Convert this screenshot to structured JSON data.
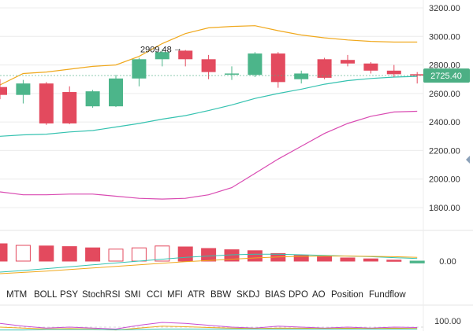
{
  "colors": {
    "up": "#4cb58a",
    "down": "#e34a5e",
    "boll_upper": "#f0a81c",
    "boll_mid": "#35c2b0",
    "boll_lower": "#d94bb2",
    "current_price_bg": "#4caf84",
    "grid": "#ececec",
    "axis_text": "#333333"
  },
  "price_axis": {
    "ticks": [
      "3200.00",
      "3000.00",
      "2800.00",
      "2600.00",
      "2400.00",
      "2200.00",
      "2000.00",
      "1800.00"
    ],
    "range": [
      1700,
      3250
    ]
  },
  "current_price": {
    "label": "2725.40",
    "value": 2725.4
  },
  "max_annotation": {
    "label": "2909.48",
    "value": 2909.48
  },
  "chart_data": {
    "type": "candlestick",
    "candles": [
      {
        "open": 2645,
        "close": 2590,
        "high": 2700,
        "low": 2560
      },
      {
        "open": 2590,
        "close": 2670,
        "high": 2695,
        "low": 2530
      },
      {
        "open": 2670,
        "close": 2390,
        "high": 2680,
        "low": 2380
      },
      {
        "open": 2610,
        "close": 2390,
        "high": 2650,
        "low": 2385
      },
      {
        "open": 2510,
        "close": 2615,
        "high": 2625,
        "low": 2500
      },
      {
        "open": 2510,
        "close": 2705,
        "high": 2730,
        "low": 2505
      },
      {
        "open": 2705,
        "close": 2840,
        "high": 2850,
        "low": 2650
      },
      {
        "open": 2840,
        "close": 2890,
        "high": 2909.48,
        "low": 2790
      },
      {
        "open": 2900,
        "close": 2840,
        "high": 2905,
        "low": 2790
      },
      {
        "open": 2840,
        "close": 2750,
        "high": 2870,
        "low": 2700
      },
      {
        "open": 2740,
        "close": 2740,
        "high": 2790,
        "low": 2695
      },
      {
        "open": 2730,
        "close": 2880,
        "high": 2890,
        "low": 2715
      },
      {
        "open": 2880,
        "close": 2680,
        "high": 2890,
        "low": 2640
      },
      {
        "open": 2700,
        "close": 2740,
        "high": 2760,
        "low": 2670
      },
      {
        "open": 2840,
        "close": 2710,
        "high": 2850,
        "low": 2700
      },
      {
        "open": 2835,
        "close": 2810,
        "high": 2870,
        "low": 2790
      },
      {
        "open": 2810,
        "close": 2760,
        "high": 2820,
        "low": 2740
      },
      {
        "open": 2760,
        "close": 2735,
        "high": 2800,
        "low": 2715
      },
      {
        "open": 2735,
        "close": 2725.4,
        "high": 2750,
        "low": 2670
      }
    ],
    "boll_upper": [
      2660,
      2740,
      2750,
      2770,
      2790,
      2800,
      2860,
      2950,
      3020,
      3060,
      3070,
      3075,
      3040,
      3010,
      2990,
      2975,
      2965,
      2960,
      2960
    ],
    "boll_mid": [
      2300,
      2310,
      2315,
      2330,
      2340,
      2365,
      2390,
      2420,
      2445,
      2480,
      2520,
      2565,
      2600,
      2630,
      2665,
      2690,
      2705,
      2715,
      2720
    ],
    "boll_lower": [
      1910,
      1890,
      1890,
      1895,
      1895,
      1880,
      1865,
      1860,
      1865,
      1890,
      1940,
      2040,
      2140,
      2230,
      2320,
      2390,
      2440,
      2470,
      2475
    ],
    "macd_histogram": [
      55,
      50,
      48,
      46,
      42,
      38,
      42,
      48,
      45,
      40,
      36,
      33,
      24,
      18,
      14,
      10,
      7,
      3,
      -6
    ],
    "macd_axis_label": "0.00",
    "macd_dif": [
      -35,
      -30,
      -24,
      -18,
      -12,
      -6,
      0,
      6,
      12,
      16,
      20,
      22,
      22,
      20,
      18,
      16,
      14,
      11,
      8
    ],
    "macd_dea": [
      -40,
      -36,
      -32,
      -27,
      -22,
      -17,
      -12,
      -7,
      -2,
      2,
      6,
      10,
      13,
      15,
      16,
      16,
      15,
      14,
      12
    ],
    "oscillator_axis_label": "100.00",
    "osc_a": [
      70,
      55,
      45,
      50,
      45,
      40,
      60,
      75,
      70,
      60,
      50,
      45,
      55,
      50,
      45,
      50,
      45,
      50,
      48
    ],
    "osc_b": [
      50,
      45,
      40,
      42,
      40,
      35,
      45,
      55,
      52,
      48,
      45,
      42,
      45,
      44,
      42,
      44,
      42,
      44,
      43
    ],
    "osc_c": [
      35,
      35,
      38,
      38,
      38,
      36,
      38,
      40,
      40,
      40,
      40,
      40,
      40,
      40,
      40,
      40,
      40,
      40,
      40
    ]
  },
  "indicator_tabs": [
    "MTM",
    "BOLL",
    "PSY",
    "StochRSI",
    "SMI",
    "CCI",
    "MFI",
    "ATR",
    "BBW",
    "SKDJ",
    "BIAS",
    "DPO",
    "AO",
    "Position",
    "Fundflow"
  ]
}
